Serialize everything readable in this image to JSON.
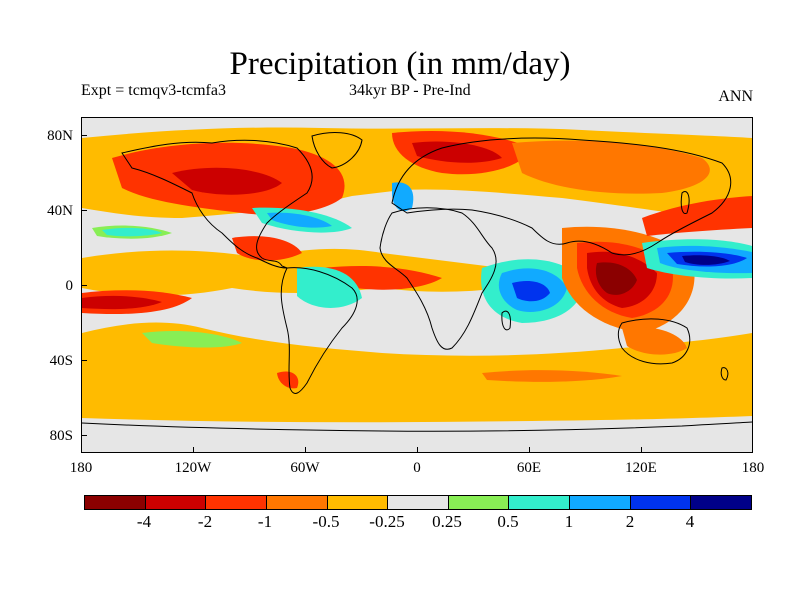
{
  "title": "Precipitation (in mm/day)",
  "subtitle_left": "Expt = tcmqv3-tcmfa3",
  "subtitle_center": "34kyr BP - Pre-Ind",
  "subtitle_right": "ANN",
  "y_axis_labels": [
    "80N",
    "40N",
    "0",
    "40S",
    "80S"
  ],
  "x_axis_labels": [
    "180",
    "120W",
    "60W",
    "0",
    "60E",
    "120E",
    "180"
  ],
  "colorbar": {
    "labels": [
      "-4",
      "-2",
      "-1",
      "-0.5",
      "-0.25",
      "0.25",
      "0.5",
      "1",
      "2",
      "4"
    ],
    "colors": [
      "#8b0000",
      "#cc0000",
      "#ff3300",
      "#ff7700",
      "#ffbb00",
      "#e6e6e6",
      "#88ee55",
      "#33eecc",
      "#11aaff",
      "#0033ee",
      "#000088"
    ]
  },
  "map_colors": {
    "background": "#e6e6e6",
    "dark_red": "#8b0000",
    "red": "#cc0000",
    "orange_red": "#ff3300",
    "orange": "#ff7700",
    "light_orange": "#ffbb00",
    "light_green": "#88ee55",
    "teal": "#33eecc",
    "sky_blue": "#11aaff",
    "blue": "#0033ee",
    "navy": "#000088",
    "coastline": "#000000"
  }
}
